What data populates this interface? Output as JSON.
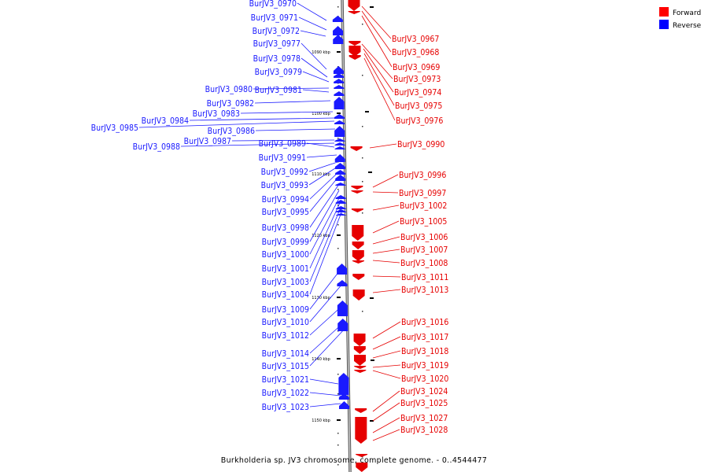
{
  "title": "Burkholderia sp. JV3 chromosome, complete genome. - 0..4544477",
  "legend": [
    {
      "label": "Forward",
      "color": "#ff0000"
    },
    {
      "label": "Reverse",
      "color": "#0000ff"
    }
  ],
  "colors": {
    "forward": "#e60000",
    "reverse": "#1a1aff",
    "backbone": "#9a9a9a"
  },
  "ticks": [
    {
      "label": "1090 kbp"
    },
    {
      "label": "1100 kbp"
    },
    {
      "label": "1110 kbp"
    },
    {
      "label": "1120 kbp"
    },
    {
      "label": "1130 kbp"
    },
    {
      "label": "1140 kbp"
    },
    {
      "label": "1150 kbp"
    }
  ],
  "reverse_genes": [
    "BurJV3_0970",
    "BurJV3_0971",
    "BurJV3_0972",
    "BurJV3_0977",
    "BurJV3_0978",
    "BurJV3_0979",
    "BurJV3_0980",
    "BurJV3_0981",
    "BurJV3_0982",
    "BurJV3_0983",
    "BurJV3_0984",
    "BurJV3_0985",
    "BurJV3_0986",
    "BurJV3_0987",
    "BurJV3_0988",
    "BurJV3_0989",
    "BurJV3_0991",
    "BurJV3_0992",
    "BurJV3_0993",
    "BurJV3_0994",
    "BurJV3_0995",
    "BurJV3_0998",
    "BurJV3_0999",
    "BurJV3_1000",
    "BurJV3_1001",
    "BurJV3_1003",
    "BurJV3_1004",
    "BurJV3_1009",
    "BurJV3_1010",
    "BurJV3_1012",
    "BurJV3_1014",
    "BurJV3_1015",
    "BurJV3_1021",
    "BurJV3_1022",
    "BurJV3_1023"
  ],
  "forward_genes": [
    "BurJV3_0967",
    "BurJV3_0968",
    "BurJV3_0969",
    "BurJV3_0973",
    "BurJV3_0974",
    "BurJV3_0975",
    "BurJV3_0976",
    "BurJV3_0990",
    "BurJV3_0996",
    "BurJV3_0997",
    "BurJV3_1002",
    "BurJV3_1005",
    "BurJV3_1006",
    "BurJV3_1007",
    "BurJV3_1008",
    "BurJV3_1011",
    "BurJV3_1013",
    "BurJV3_1016",
    "BurJV3_1017",
    "BurJV3_1018",
    "BurJV3_1019",
    "BurJV3_1020",
    "BurJV3_1024",
    "BurJV3_1025",
    "BurJV3_1027",
    "BurJV3_1028"
  ]
}
